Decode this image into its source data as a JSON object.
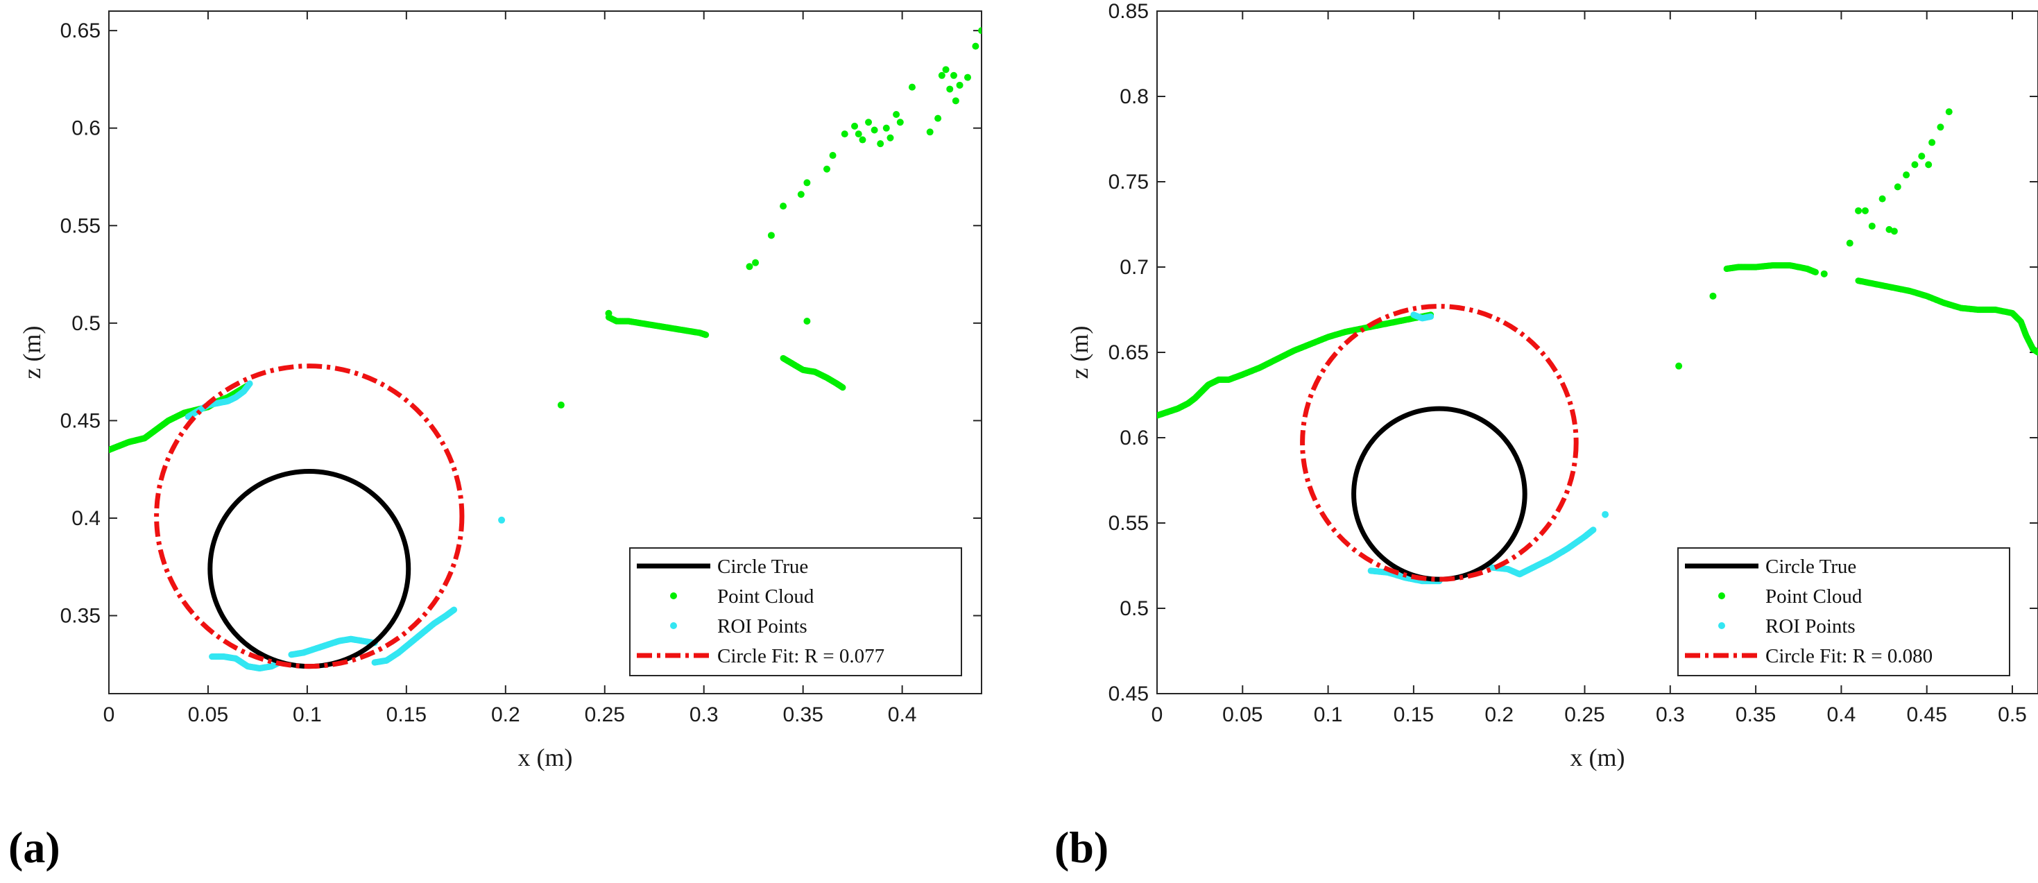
{
  "colors": {
    "circle_true": "#000000",
    "point_cloud": "#00ee00",
    "roi_points": "#33e6f2",
    "circle_fit": "#ee1111"
  },
  "chart_data": [
    {
      "type": "scatter",
      "panel_label": "(a)",
      "xlabel": "x (m)",
      "ylabel": "z (m)",
      "xlim": [
        0,
        0.44
      ],
      "ylim": [
        0.31,
        0.66
      ],
      "xticks": [
        0,
        0.05,
        0.1,
        0.15,
        0.2,
        0.25,
        0.3,
        0.35,
        0.4
      ],
      "xtick_labels": [
        "0",
        "0.05",
        "0.1",
        "0.15",
        "0.2",
        "0.25",
        "0.3",
        "0.35",
        "0.4"
      ],
      "yticks": [
        0.35,
        0.4,
        0.45,
        0.5,
        0.55,
        0.6,
        0.65
      ],
      "ytick_labels": [
        "0.35",
        "0.4",
        "0.45",
        "0.5",
        "0.55",
        "0.6",
        "0.65"
      ],
      "legend": {
        "position": "bottom-right",
        "entries": [
          "Circle True",
          "Point Cloud",
          "ROI Points",
          "Circle Fit: R = 0.077"
        ]
      },
      "circle_true": {
        "cx": 0.101,
        "cz": 0.374,
        "r": 0.05
      },
      "circle_fit": {
        "cx": 0.101,
        "cz": 0.401,
        "r": 0.077
      },
      "point_cloud": {
        "segments": [
          [
            [
              0.0,
              0.435
            ],
            [
              0.005,
              0.437
            ],
            [
              0.01,
              0.439
            ],
            [
              0.014,
              0.44
            ],
            [
              0.018,
              0.441
            ],
            [
              0.022,
              0.444
            ],
            [
              0.026,
              0.447
            ],
            [
              0.03,
              0.45
            ],
            [
              0.034,
              0.452
            ],
            [
              0.038,
              0.454
            ],
            [
              0.042,
              0.455
            ],
            [
              0.046,
              0.456
            ],
            [
              0.05,
              0.457
            ],
            [
              0.055,
              0.46
            ],
            [
              0.06,
              0.462
            ],
            [
              0.065,
              0.465
            ],
            [
              0.07,
              0.468
            ]
          ],
          [
            [
              0.252,
              0.503
            ],
            [
              0.256,
              0.501
            ],
            [
              0.262,
              0.501
            ],
            [
              0.268,
              0.5
            ],
            [
              0.274,
              0.499
            ],
            [
              0.28,
              0.498
            ],
            [
              0.286,
              0.497
            ],
            [
              0.292,
              0.496
            ],
            [
              0.298,
              0.495
            ],
            [
              0.301,
              0.494
            ]
          ],
          [
            [
              0.34,
              0.482
            ],
            [
              0.345,
              0.479
            ],
            [
              0.35,
              0.476
            ],
            [
              0.356,
              0.475
            ],
            [
              0.362,
              0.472
            ],
            [
              0.367,
              0.469
            ],
            [
              0.37,
              0.467
            ]
          ]
        ],
        "points": [
          [
            0.228,
            0.458
          ],
          [
            0.252,
            0.505
          ],
          [
            0.323,
            0.529
          ],
          [
            0.326,
            0.531
          ],
          [
            0.334,
            0.545
          ],
          [
            0.34,
            0.56
          ],
          [
            0.349,
            0.566
          ],
          [
            0.352,
            0.572
          ],
          [
            0.352,
            0.501
          ],
          [
            0.362,
            0.579
          ],
          [
            0.365,
            0.586
          ],
          [
            0.371,
            0.597
          ],
          [
            0.376,
            0.601
          ],
          [
            0.378,
            0.597
          ],
          [
            0.38,
            0.594
          ],
          [
            0.383,
            0.603
          ],
          [
            0.386,
            0.599
          ],
          [
            0.389,
            0.592
          ],
          [
            0.392,
            0.6
          ],
          [
            0.394,
            0.595
          ],
          [
            0.397,
            0.607
          ],
          [
            0.399,
            0.603
          ],
          [
            0.405,
            0.621
          ],
          [
            0.414,
            0.598
          ],
          [
            0.418,
            0.605
          ],
          [
            0.42,
            0.627
          ],
          [
            0.422,
            0.63
          ],
          [
            0.424,
            0.62
          ],
          [
            0.426,
            0.627
          ],
          [
            0.427,
            0.614
          ],
          [
            0.429,
            0.622
          ],
          [
            0.433,
            0.626
          ],
          [
            0.437,
            0.642
          ],
          [
            0.44,
            0.65
          ]
        ]
      },
      "roi_points": {
        "segments": [
          [
            [
              0.04,
              0.452
            ],
            [
              0.045,
              0.455
            ],
            [
              0.05,
              0.458
            ],
            [
              0.055,
              0.459
            ],
            [
              0.06,
              0.46
            ],
            [
              0.064,
              0.462
            ],
            [
              0.068,
              0.465
            ],
            [
              0.071,
              0.469
            ]
          ],
          [
            [
              0.052,
              0.329
            ],
            [
              0.058,
              0.329
            ],
            [
              0.064,
              0.328
            ],
            [
              0.07,
              0.324
            ],
            [
              0.076,
              0.323
            ],
            [
              0.082,
              0.324
            ],
            [
              0.086,
              0.326
            ]
          ],
          [
            [
              0.092,
              0.33
            ],
            [
              0.098,
              0.331
            ],
            [
              0.104,
              0.333
            ],
            [
              0.11,
              0.335
            ],
            [
              0.116,
              0.337
            ],
            [
              0.122,
              0.338
            ],
            [
              0.128,
              0.337
            ],
            [
              0.134,
              0.336
            ]
          ],
          [
            [
              0.134,
              0.326
            ],
            [
              0.14,
              0.327
            ],
            [
              0.146,
              0.331
            ],
            [
              0.152,
              0.336
            ],
            [
              0.158,
              0.341
            ],
            [
              0.164,
              0.346
            ],
            [
              0.17,
              0.35
            ],
            [
              0.174,
              0.353
            ]
          ]
        ],
        "points": [
          [
            0.198,
            0.399
          ]
        ]
      }
    },
    {
      "type": "scatter",
      "panel_label": "(b)",
      "xlabel": "x (m)",
      "ylabel": "z (m)",
      "xlim": [
        0,
        0.515
      ],
      "ylim": [
        0.45,
        0.85
      ],
      "xticks": [
        0,
        0.05,
        0.1,
        0.15,
        0.2,
        0.25,
        0.3,
        0.35,
        0.4,
        0.45,
        0.5
      ],
      "xtick_labels": [
        "0",
        "0.05",
        "0.1",
        "0.15",
        "0.2",
        "0.25",
        "0.3",
        "0.35",
        "0.4",
        "0.45",
        "0.5"
      ],
      "yticks": [
        0.45,
        0.5,
        0.55,
        0.6,
        0.65,
        0.7,
        0.75,
        0.8,
        0.85
      ],
      "ytick_labels": [
        "0.45",
        "0.5",
        "0.55",
        "0.6",
        "0.65",
        "0.7",
        "0.75",
        "0.8",
        "0.85"
      ],
      "legend": {
        "position": "bottom-right",
        "entries": [
          "Circle True",
          "Point Cloud",
          "ROI Points",
          "Circle Fit: R = 0.080"
        ]
      },
      "circle_true": {
        "cx": 0.165,
        "cz": 0.567,
        "r": 0.05
      },
      "circle_fit": {
        "cx": 0.165,
        "cz": 0.597,
        "r": 0.08
      },
      "point_cloud": {
        "segments": [
          [
            [
              0.0,
              0.613
            ],
            [
              0.006,
              0.615
            ],
            [
              0.012,
              0.617
            ],
            [
              0.018,
              0.62
            ],
            [
              0.022,
              0.623
            ],
            [
              0.026,
              0.627
            ],
            [
              0.03,
              0.631
            ],
            [
              0.036,
              0.634
            ],
            [
              0.042,
              0.634
            ],
            [
              0.05,
              0.637
            ],
            [
              0.06,
              0.641
            ],
            [
              0.07,
              0.646
            ],
            [
              0.08,
              0.651
            ],
            [
              0.09,
              0.655
            ],
            [
              0.1,
              0.659
            ],
            [
              0.11,
              0.662
            ],
            [
              0.12,
              0.664
            ],
            [
              0.13,
              0.666
            ],
            [
              0.14,
              0.668
            ],
            [
              0.15,
              0.67
            ],
            [
              0.16,
              0.672
            ]
          ],
          [
            [
              0.333,
              0.699
            ],
            [
              0.34,
              0.7
            ],
            [
              0.35,
              0.7
            ],
            [
              0.36,
              0.701
            ],
            [
              0.37,
              0.701
            ],
            [
              0.38,
              0.699
            ],
            [
              0.385,
              0.697
            ]
          ],
          [
            [
              0.41,
              0.692
            ],
            [
              0.42,
              0.69
            ],
            [
              0.43,
              0.688
            ],
            [
              0.44,
              0.686
            ],
            [
              0.45,
              0.683
            ],
            [
              0.46,
              0.679
            ],
            [
              0.47,
              0.676
            ],
            [
              0.48,
              0.675
            ],
            [
              0.49,
              0.675
            ],
            [
              0.5,
              0.673
            ],
            [
              0.505,
              0.668
            ],
            [
              0.508,
              0.66
            ],
            [
              0.512,
              0.652
            ],
            [
              0.515,
              0.65
            ]
          ]
        ],
        "points": [
          [
            0.305,
            0.642
          ],
          [
            0.325,
            0.683
          ],
          [
            0.39,
            0.696
          ],
          [
            0.405,
            0.714
          ],
          [
            0.41,
            0.733
          ],
          [
            0.414,
            0.733
          ],
          [
            0.418,
            0.724
          ],
          [
            0.424,
            0.74
          ],
          [
            0.428,
            0.722
          ],
          [
            0.431,
            0.721
          ],
          [
            0.433,
            0.747
          ],
          [
            0.438,
            0.754
          ],
          [
            0.443,
            0.76
          ],
          [
            0.447,
            0.765
          ],
          [
            0.451,
            0.76
          ],
          [
            0.453,
            0.773
          ],
          [
            0.458,
            0.782
          ],
          [
            0.463,
            0.791
          ]
        ]
      },
      "roi_points": {
        "segments": [
          [
            [
              0.125,
              0.522
            ],
            [
              0.135,
              0.521
            ],
            [
              0.145,
              0.518
            ],
            [
              0.155,
              0.516
            ],
            [
              0.165,
              0.516
            ]
          ],
          [
            [
              0.195,
              0.524
            ],
            [
              0.205,
              0.523
            ],
            [
              0.212,
              0.52
            ],
            [
              0.22,
              0.524
            ],
            [
              0.23,
              0.529
            ],
            [
              0.24,
              0.535
            ],
            [
              0.25,
              0.542
            ],
            [
              0.255,
              0.546
            ]
          ],
          [
            [
              0.15,
              0.672
            ],
            [
              0.155,
              0.67
            ],
            [
              0.16,
              0.671
            ]
          ]
        ],
        "points": [
          [
            0.262,
            0.555
          ]
        ]
      }
    }
  ]
}
